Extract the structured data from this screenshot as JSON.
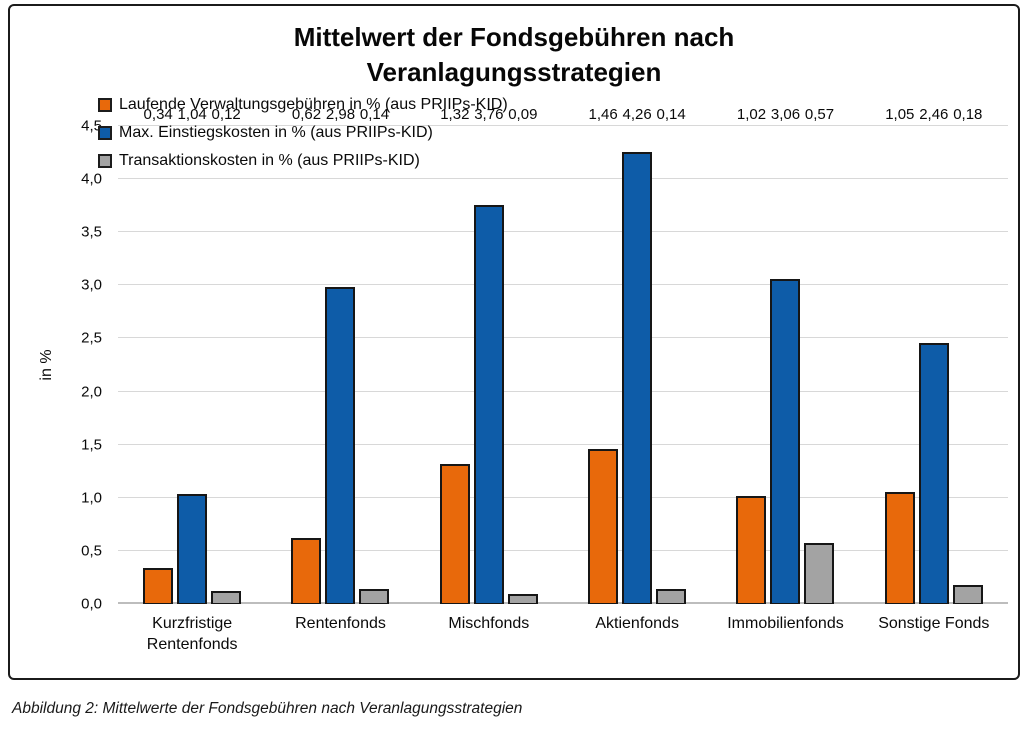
{
  "figure": {
    "caption": "Abbildung 2: Mittelwerte der Fondsgebühren nach Veranlagungsstrategien"
  },
  "colors": {
    "grid": "#D8D8D8",
    "axis": "#BDBDBD",
    "bar_border": "#161616",
    "box_border": "#1B1B1B"
  },
  "chart_data": {
    "type": "bar",
    "title": "Mittelwert der Fondsgebühren nach Veranlagungsstrategien",
    "xlabel": "",
    "ylabel": "in %",
    "ylim": [
      0,
      4.5
    ],
    "ytick_step": 0.5,
    "ytick_labels": [
      "0,0",
      "0,5",
      "1,0",
      "1,5",
      "2,0",
      "2,5",
      "3,0",
      "3,5",
      "4,0",
      "4,5"
    ],
    "grid": true,
    "legend_position": "top-left",
    "categories": [
      "Kurzfristige Rentenfonds",
      "Rentenfonds",
      "Mischfonds",
      "Aktienfonds",
      "Immobilienfonds",
      "Sonstige Fonds"
    ],
    "series": [
      {
        "name": "Laufende Verwaltungsgebühren in % (aus PRIIPs-KID)",
        "color": "#E8690B",
        "values": [
          0.34,
          0.62,
          1.32,
          1.46,
          1.02,
          1.05
        ],
        "labels": [
          "0,34",
          "0,62",
          "1,32",
          "1,46",
          "1,02",
          "1,05"
        ]
      },
      {
        "name": "Max. Einstiegskosten in % (aus PRIIPs-KID)",
        "color": "#0E5CA8",
        "values": [
          1.04,
          2.98,
          3.76,
          4.26,
          3.06,
          2.46
        ],
        "labels": [
          "1,04",
          "2,98",
          "3,76",
          "4,26",
          "3,06",
          "2,46"
        ]
      },
      {
        "name": "Transaktionskosten in % (aus PRIIPs-KID)",
        "color": "#A3A3A3",
        "values": [
          0.12,
          0.14,
          0.09,
          0.14,
          0.57,
          0.18
        ],
        "labels": [
          "0,12",
          "0,14",
          "0,09",
          "0,14",
          "0,57",
          "0,18"
        ]
      }
    ]
  }
}
